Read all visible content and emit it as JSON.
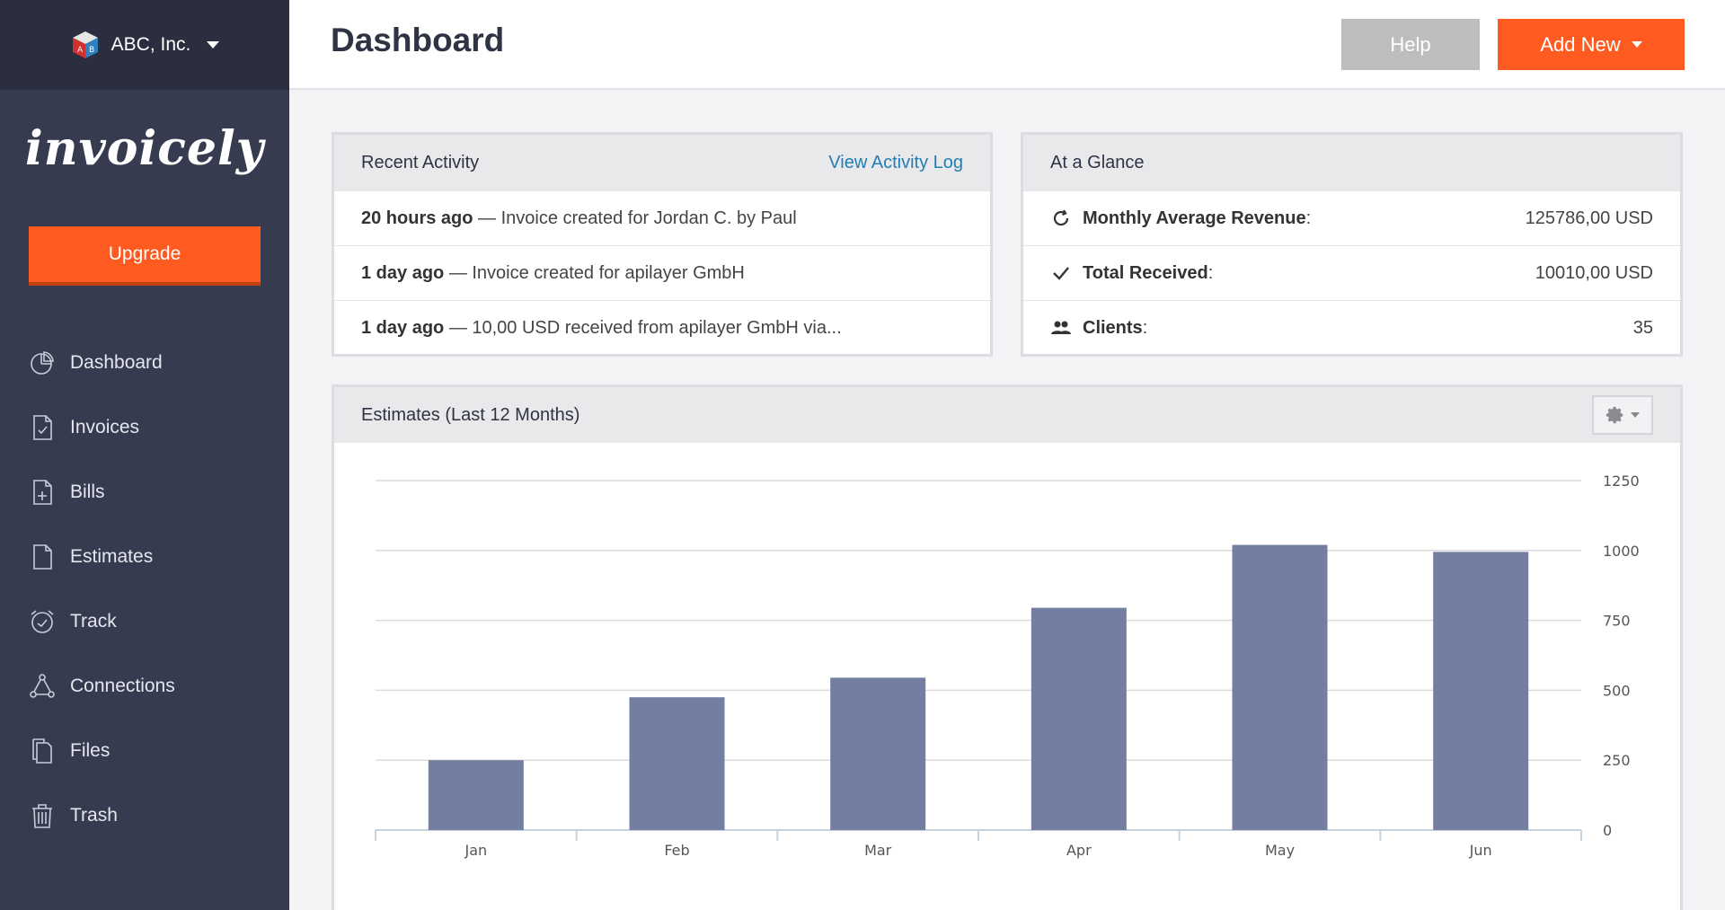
{
  "org": {
    "name": "ABC, Inc."
  },
  "brand": "invoicely",
  "sidebar": {
    "upgrade_label": "Upgrade",
    "items": [
      {
        "label": "Dashboard",
        "icon": "pie-chart-icon"
      },
      {
        "label": "Invoices",
        "icon": "invoice-icon"
      },
      {
        "label": "Bills",
        "icon": "bill-icon"
      },
      {
        "label": "Estimates",
        "icon": "document-icon"
      },
      {
        "label": "Track",
        "icon": "alarm-clock-icon"
      },
      {
        "label": "Connections",
        "icon": "network-icon"
      },
      {
        "label": "Files",
        "icon": "files-icon"
      },
      {
        "label": "Trash",
        "icon": "trash-icon"
      }
    ]
  },
  "header": {
    "title": "Dashboard",
    "help_label": "Help",
    "add_new_label": "Add New"
  },
  "recent_activity": {
    "title": "Recent Activity",
    "link_label": "View Activity Log",
    "rows": [
      {
        "time": "20 hours ago",
        "text": " — Invoice created for Jordan C. by Paul"
      },
      {
        "time": "1 day ago",
        "text": " — Invoice created for apilayer GmbH"
      },
      {
        "time": "1 day ago",
        "text": " — 10,00 USD received from apilayer GmbH via..."
      }
    ]
  },
  "glance": {
    "title": "At a Glance",
    "rows": [
      {
        "label": "Monthly Average Revenue",
        "suffix": ":",
        "value": "125786,00 USD",
        "icon": "refresh-icon"
      },
      {
        "label": "Total Received",
        "suffix": ":",
        "value": "10010,00 USD",
        "icon": "check-icon"
      },
      {
        "label": "Clients",
        "suffix": ":",
        "value": "35",
        "icon": "users-icon"
      }
    ]
  },
  "estimates": {
    "title": "Estimates (Last 12 Months)",
    "settings_icon": "gear-icon"
  },
  "colors": {
    "accent": "#ff5a1f",
    "sidebar": "#363b4f",
    "bar": "#747ea1",
    "link": "#1f7fb3"
  },
  "chart_data": {
    "type": "bar",
    "categories": [
      "Jan",
      "Feb",
      "Mar",
      "Apr",
      "May",
      "Jun"
    ],
    "values": [
      250,
      475,
      545,
      795,
      1020,
      995
    ],
    "yticks": [
      0,
      250,
      500,
      750,
      1000,
      1250
    ],
    "ylim": [
      0,
      1250
    ],
    "y_axis_side": "right",
    "grid": true
  }
}
